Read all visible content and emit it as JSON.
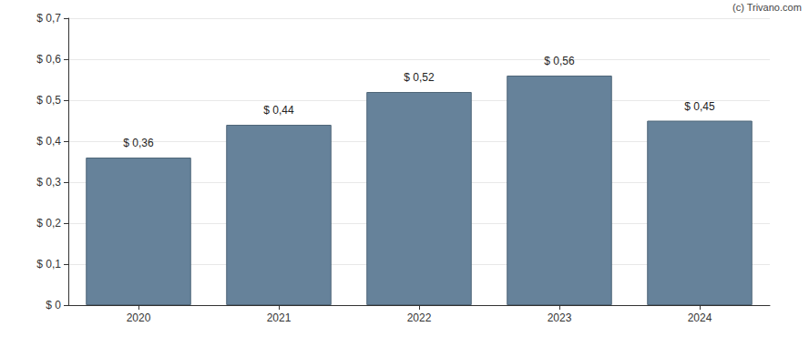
{
  "chart_data": {
    "type": "bar",
    "categories": [
      "2020",
      "2021",
      "2022",
      "2023",
      "2024"
    ],
    "values": [
      0.36,
      0.44,
      0.52,
      0.56,
      0.45
    ],
    "value_labels": [
      "$ 0,36",
      "$ 0,44",
      "$ 0,52",
      "$ 0,56",
      "$ 0,45"
    ],
    "data_labels": true,
    "color": "#66829a",
    "ylim": [
      0,
      0.7
    ],
    "yticks": [
      {
        "value": 0,
        "label": "$ 0"
      },
      {
        "value": 0.1,
        "label": "$ 0,1"
      },
      {
        "value": 0.2,
        "label": "$ 0,2"
      },
      {
        "value": 0.3,
        "label": "$ 0,3"
      },
      {
        "value": 0.4,
        "label": "$ 0,4"
      },
      {
        "value": 0.5,
        "label": "$ 0,5"
      },
      {
        "value": 0.6,
        "label": "$ 0,6"
      },
      {
        "value": 0.7,
        "label": "$ 0,7"
      }
    ],
    "grid": true,
    "annotations": [
      "(c) Trivano.com"
    ]
  }
}
